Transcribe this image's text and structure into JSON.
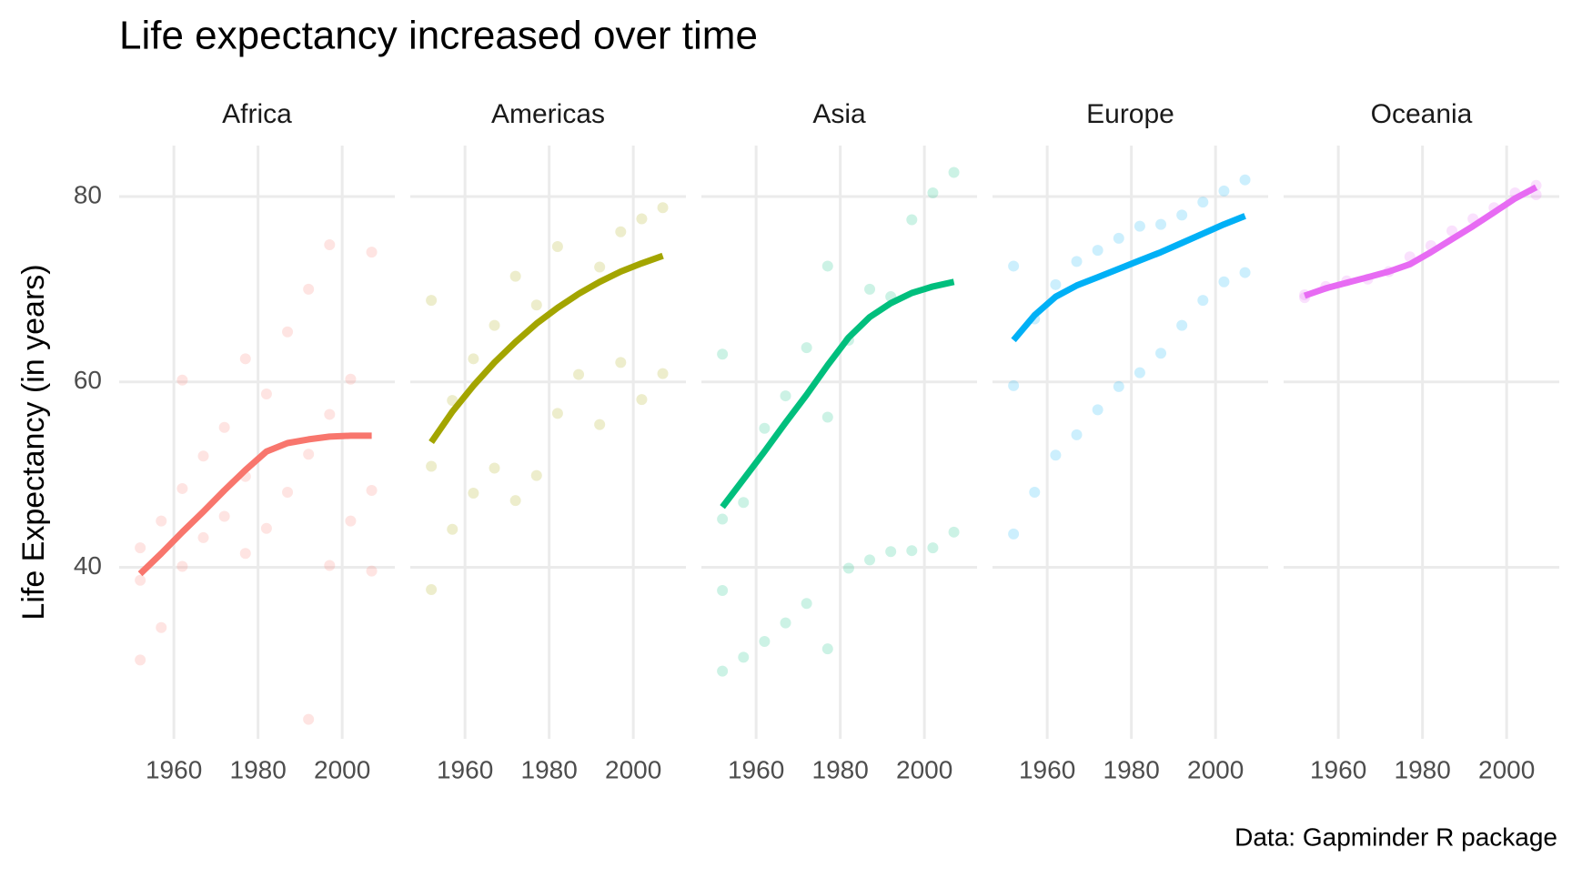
{
  "chart_data": {
    "type": "scatter",
    "title": "Life expectancy increased over time",
    "ylabel": "Life Expectancy (in years)",
    "caption": "Data: Gapminder R package",
    "xlim": [
      1947,
      2012.5
    ],
    "ylim": [
      21.5,
      85.5
    ],
    "xticks": [
      1960,
      1980,
      2000
    ],
    "yticks": [
      40,
      60,
      80
    ],
    "grid": true,
    "facets": [
      {
        "name": "Africa",
        "color": "#F8766D",
        "points": {
          "x": [
            1952,
            1952,
            1952,
            1957,
            1957,
            1962,
            1962,
            1962,
            1967,
            1967,
            1972,
            1972,
            1977,
            1977,
            1977,
            1982,
            1982,
            1987,
            1987,
            1992,
            1992,
            1992,
            1997,
            1997,
            1997,
            2002,
            2002,
            2007,
            2007,
            2007
          ],
          "y": [
            30.0,
            42.1,
            38.6,
            45.0,
            33.5,
            40.1,
            48.5,
            60.2,
            43.2,
            52.0,
            45.5,
            55.1,
            41.5,
            49.8,
            62.5,
            44.2,
            58.7,
            48.1,
            65.4,
            23.6,
            52.2,
            70.0,
            40.2,
            56.5,
            74.8,
            45.0,
            60.3,
            39.6,
            48.3,
            74.0
          ]
        },
        "trend": {
          "x": [
            1952,
            1957,
            1962,
            1967,
            1972,
            1977,
            1982,
            1987,
            1992,
            1997,
            2002,
            2007
          ],
          "y": [
            39.3,
            41.5,
            43.8,
            46.0,
            48.3,
            50.5,
            52.5,
            53.4,
            53.8,
            54.1,
            54.2,
            54.2
          ]
        }
      },
      {
        "name": "Americas",
        "color": "#A3A500",
        "points": {
          "x": [
            1952,
            1952,
            1952,
            1957,
            1957,
            1962,
            1962,
            1967,
            1967,
            1972,
            1972,
            1977,
            1977,
            1982,
            1982,
            1987,
            1992,
            1992,
            1997,
            1997,
            2002,
            2002,
            2007,
            2007
          ],
          "y": [
            37.6,
            50.9,
            68.8,
            44.1,
            58.0,
            48.0,
            62.5,
            50.7,
            66.1,
            47.2,
            71.4,
            49.9,
            68.3,
            56.6,
            74.6,
            60.8,
            55.4,
            72.4,
            62.1,
            76.2,
            58.1,
            77.6,
            60.9,
            78.8
          ]
        },
        "trend": {
          "x": [
            1952,
            1957,
            1962,
            1967,
            1972,
            1977,
            1982,
            1987,
            1992,
            1997,
            2002,
            2007
          ],
          "y": [
            53.5,
            56.8,
            59.6,
            62.1,
            64.3,
            66.3,
            68.0,
            69.5,
            70.8,
            71.9,
            72.8,
            73.6
          ]
        }
      },
      {
        "name": "Asia",
        "color": "#00BF7D",
        "points": {
          "x": [
            1952,
            1952,
            1952,
            1952,
            1957,
            1957,
            1962,
            1962,
            1967,
            1967,
            1972,
            1972,
            1977,
            1977,
            1977,
            1982,
            1982,
            1987,
            1987,
            1992,
            1992,
            1997,
            1997,
            2002,
            2002,
            2007,
            2007
          ],
          "y": [
            28.8,
            37.5,
            45.2,
            63.0,
            30.3,
            47.0,
            32.0,
            55.0,
            34.0,
            58.5,
            36.1,
            63.7,
            31.2,
            56.2,
            72.5,
            39.9,
            64.5,
            40.8,
            70.0,
            41.7,
            69.2,
            41.8,
            77.5,
            42.1,
            80.4,
            43.8,
            82.6
          ]
        },
        "trend": {
          "x": [
            1952,
            1957,
            1962,
            1967,
            1972,
            1977,
            1982,
            1987,
            1992,
            1997,
            2002,
            2007
          ],
          "y": [
            46.5,
            49.5,
            52.5,
            55.6,
            58.6,
            61.8,
            64.8,
            67.0,
            68.5,
            69.6,
            70.3,
            70.8
          ]
        }
      },
      {
        "name": "Europe",
        "color": "#00B0F6",
        "points": {
          "x": [
            1952,
            1952,
            1952,
            1957,
            1957,
            1962,
            1962,
            1967,
            1967,
            1972,
            1972,
            1977,
            1977,
            1982,
            1982,
            1987,
            1987,
            1992,
            1992,
            1997,
            1997,
            2002,
            2002,
            2007,
            2007
          ],
          "y": [
            43.6,
            59.6,
            72.5,
            48.1,
            66.8,
            52.1,
            70.5,
            54.3,
            73.0,
            57.0,
            74.2,
            59.5,
            75.5,
            61.0,
            76.8,
            63.1,
            77.0,
            66.1,
            78.0,
            68.8,
            79.4,
            70.8,
            80.6,
            71.8,
            81.8
          ]
        },
        "trend": {
          "x": [
            1952,
            1957,
            1962,
            1967,
            1972,
            1977,
            1982,
            1987,
            1992,
            1997,
            2002,
            2007
          ],
          "y": [
            64.5,
            67.2,
            69.2,
            70.4,
            71.3,
            72.2,
            73.1,
            74.0,
            75.0,
            76.0,
            77.0,
            77.9
          ]
        }
      },
      {
        "name": "Oceania",
        "color": "#E76BF3",
        "points": {
          "x": [
            1952,
            1952,
            1957,
            1962,
            1967,
            1972,
            1977,
            1982,
            1987,
            1992,
            1997,
            2002,
            2007,
            2007
          ],
          "y": [
            69.1,
            69.4,
            70.3,
            70.9,
            71.1,
            71.9,
            73.5,
            74.7,
            76.3,
            77.6,
            78.8,
            80.4,
            81.2,
            80.2
          ]
        },
        "trend": {
          "x": [
            1952,
            1957,
            1962,
            1967,
            1972,
            1977,
            1982,
            1987,
            1992,
            1997,
            2002,
            2007
          ],
          "y": [
            69.3,
            70.1,
            70.7,
            71.3,
            71.9,
            72.7,
            74.0,
            75.4,
            76.8,
            78.3,
            79.8,
            81.0
          ]
        }
      }
    ]
  }
}
